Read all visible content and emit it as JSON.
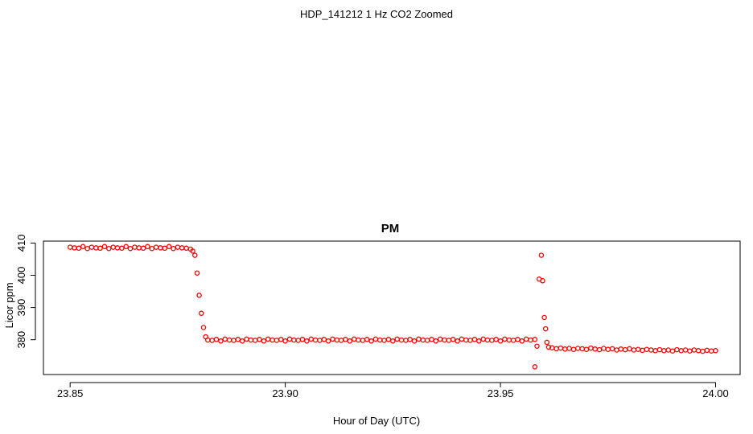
{
  "page_title": "HDP_141212  1 Hz CO2 Zoomed",
  "chart_data": {
    "type": "scatter",
    "title": "PM",
    "xlabel": "Hour of Day (UTC)",
    "ylabel": "Licor ppm",
    "xlim": [
      23.8438,
      24.0057
    ],
    "ylim": [
      369.2,
      410.6
    ],
    "x_ticks": [
      23.85,
      23.9,
      23.95,
      24.0
    ],
    "x_tick_labels": [
      "23.85",
      "23.90",
      "23.95",
      "24.00"
    ],
    "y_ticks": [
      380,
      390,
      400,
      410
    ],
    "y_tick_labels": [
      "380",
      "390",
      "400",
      "410"
    ],
    "grid": false,
    "marker": "open-circle",
    "color": "#ff0000",
    "series": [
      {
        "values": [
          [
            23.85,
            408.7
          ],
          [
            23.851,
            408.5
          ],
          [
            23.852,
            408.4
          ],
          [
            23.853,
            408.9
          ],
          [
            23.854,
            408.3
          ],
          [
            23.855,
            408.7
          ],
          [
            23.856,
            408.5
          ],
          [
            23.857,
            408.4
          ],
          [
            23.858,
            408.9
          ],
          [
            23.859,
            408.3
          ],
          [
            23.86,
            408.7
          ],
          [
            23.861,
            408.5
          ],
          [
            23.862,
            408.4
          ],
          [
            23.863,
            408.9
          ],
          [
            23.864,
            408.3
          ],
          [
            23.865,
            408.7
          ],
          [
            23.866,
            408.5
          ],
          [
            23.867,
            408.4
          ],
          [
            23.868,
            408.9
          ],
          [
            23.869,
            408.3
          ],
          [
            23.87,
            408.7
          ],
          [
            23.871,
            408.5
          ],
          [
            23.872,
            408.4
          ],
          [
            23.873,
            408.9
          ],
          [
            23.874,
            408.3
          ],
          [
            23.875,
            408.7
          ],
          [
            23.876,
            408.5
          ],
          [
            23.877,
            408.4
          ],
          [
            23.878,
            408.1
          ],
          [
            23.8785,
            407.5
          ],
          [
            23.879,
            406.2
          ],
          [
            23.8795,
            400.7
          ],
          [
            23.88,
            393.8
          ],
          [
            23.8805,
            388.2
          ],
          [
            23.881,
            383.8
          ],
          [
            23.8815,
            380.9
          ],
          [
            23.882,
            379.9
          ],
          [
            23.883,
            379.8
          ],
          [
            23.884,
            380.1
          ],
          [
            23.885,
            379.6
          ],
          [
            23.886,
            380.2
          ],
          [
            23.887,
            379.9
          ],
          [
            23.888,
            379.8
          ],
          [
            23.889,
            380.1
          ],
          [
            23.89,
            379.6
          ],
          [
            23.891,
            380.2
          ],
          [
            23.892,
            379.9
          ],
          [
            23.893,
            379.8
          ],
          [
            23.894,
            380.1
          ],
          [
            23.895,
            379.6
          ],
          [
            23.896,
            380.2
          ],
          [
            23.897,
            379.9
          ],
          [
            23.898,
            379.8
          ],
          [
            23.899,
            380.1
          ],
          [
            23.9,
            379.6
          ],
          [
            23.901,
            380.2
          ],
          [
            23.902,
            379.9
          ],
          [
            23.903,
            379.8
          ],
          [
            23.904,
            380.1
          ],
          [
            23.905,
            379.6
          ],
          [
            23.906,
            380.2
          ],
          [
            23.907,
            379.9
          ],
          [
            23.908,
            379.8
          ],
          [
            23.909,
            380.1
          ],
          [
            23.91,
            379.6
          ],
          [
            23.911,
            380.2
          ],
          [
            23.912,
            379.9
          ],
          [
            23.913,
            379.8
          ],
          [
            23.914,
            380.1
          ],
          [
            23.915,
            379.6
          ],
          [
            23.916,
            380.2
          ],
          [
            23.917,
            379.9
          ],
          [
            23.918,
            379.8
          ],
          [
            23.919,
            380.1
          ],
          [
            23.92,
            379.6
          ],
          [
            23.921,
            380.2
          ],
          [
            23.922,
            379.9
          ],
          [
            23.923,
            379.8
          ],
          [
            23.924,
            380.1
          ],
          [
            23.925,
            379.6
          ],
          [
            23.926,
            380.2
          ],
          [
            23.927,
            379.9
          ],
          [
            23.928,
            379.8
          ],
          [
            23.929,
            380.1
          ],
          [
            23.93,
            379.6
          ],
          [
            23.931,
            380.2
          ],
          [
            23.932,
            379.9
          ],
          [
            23.933,
            379.8
          ],
          [
            23.934,
            380.1
          ],
          [
            23.935,
            379.6
          ],
          [
            23.936,
            380.2
          ],
          [
            23.937,
            379.9
          ],
          [
            23.938,
            379.8
          ],
          [
            23.939,
            380.1
          ],
          [
            23.94,
            379.6
          ],
          [
            23.941,
            380.2
          ],
          [
            23.942,
            379.9
          ],
          [
            23.943,
            379.8
          ],
          [
            23.944,
            380.1
          ],
          [
            23.945,
            379.6
          ],
          [
            23.946,
            380.2
          ],
          [
            23.947,
            379.9
          ],
          [
            23.948,
            379.8
          ],
          [
            23.949,
            380.1
          ],
          [
            23.95,
            379.6
          ],
          [
            23.951,
            380.2
          ],
          [
            23.952,
            379.9
          ],
          [
            23.953,
            379.8
          ],
          [
            23.954,
            380.1
          ],
          [
            23.955,
            379.6
          ],
          [
            23.956,
            380.2
          ],
          [
            23.957,
            379.9
          ],
          [
            23.958,
            380.1
          ],
          [
            23.9585,
            378.0
          ],
          [
            23.958,
            371.6
          ],
          [
            23.959,
            398.8
          ],
          [
            23.9595,
            406.2
          ],
          [
            23.9598,
            398.3
          ],
          [
            23.9602,
            386.9
          ],
          [
            23.9605,
            383.4
          ],
          [
            23.9608,
            379.2
          ],
          [
            23.9612,
            377.7
          ],
          [
            23.962,
            377.5
          ],
          [
            23.963,
            377.2
          ],
          [
            23.964,
            377.4
          ],
          [
            23.965,
            377.1
          ],
          [
            23.966,
            377.3
          ],
          [
            23.967,
            377.0
          ],
          [
            23.968,
            377.3
          ],
          [
            23.969,
            377.2
          ],
          [
            23.97,
            377.0
          ],
          [
            23.971,
            377.4
          ],
          [
            23.972,
            377.1
          ],
          [
            23.973,
            376.9
          ],
          [
            23.974,
            377.3
          ],
          [
            23.975,
            377.0
          ],
          [
            23.976,
            377.2
          ],
          [
            23.977,
            376.8
          ],
          [
            23.978,
            377.1
          ],
          [
            23.979,
            376.9
          ],
          [
            23.98,
            377.2
          ],
          [
            23.981,
            376.8
          ],
          [
            23.982,
            377.0
          ],
          [
            23.983,
            376.7
          ],
          [
            23.984,
            377.0
          ],
          [
            23.985,
            376.8
          ],
          [
            23.986,
            376.6
          ],
          [
            23.987,
            376.9
          ],
          [
            23.988,
            376.6
          ],
          [
            23.989,
            376.8
          ],
          [
            23.99,
            376.5
          ],
          [
            23.991,
            376.9
          ],
          [
            23.992,
            376.6
          ],
          [
            23.993,
            376.8
          ],
          [
            23.994,
            376.5
          ],
          [
            23.995,
            376.8
          ],
          [
            23.996,
            376.6
          ],
          [
            23.997,
            376.4
          ],
          [
            23.998,
            376.7
          ],
          [
            23.999,
            376.5
          ],
          [
            24.0,
            376.6
          ]
        ]
      }
    ]
  }
}
